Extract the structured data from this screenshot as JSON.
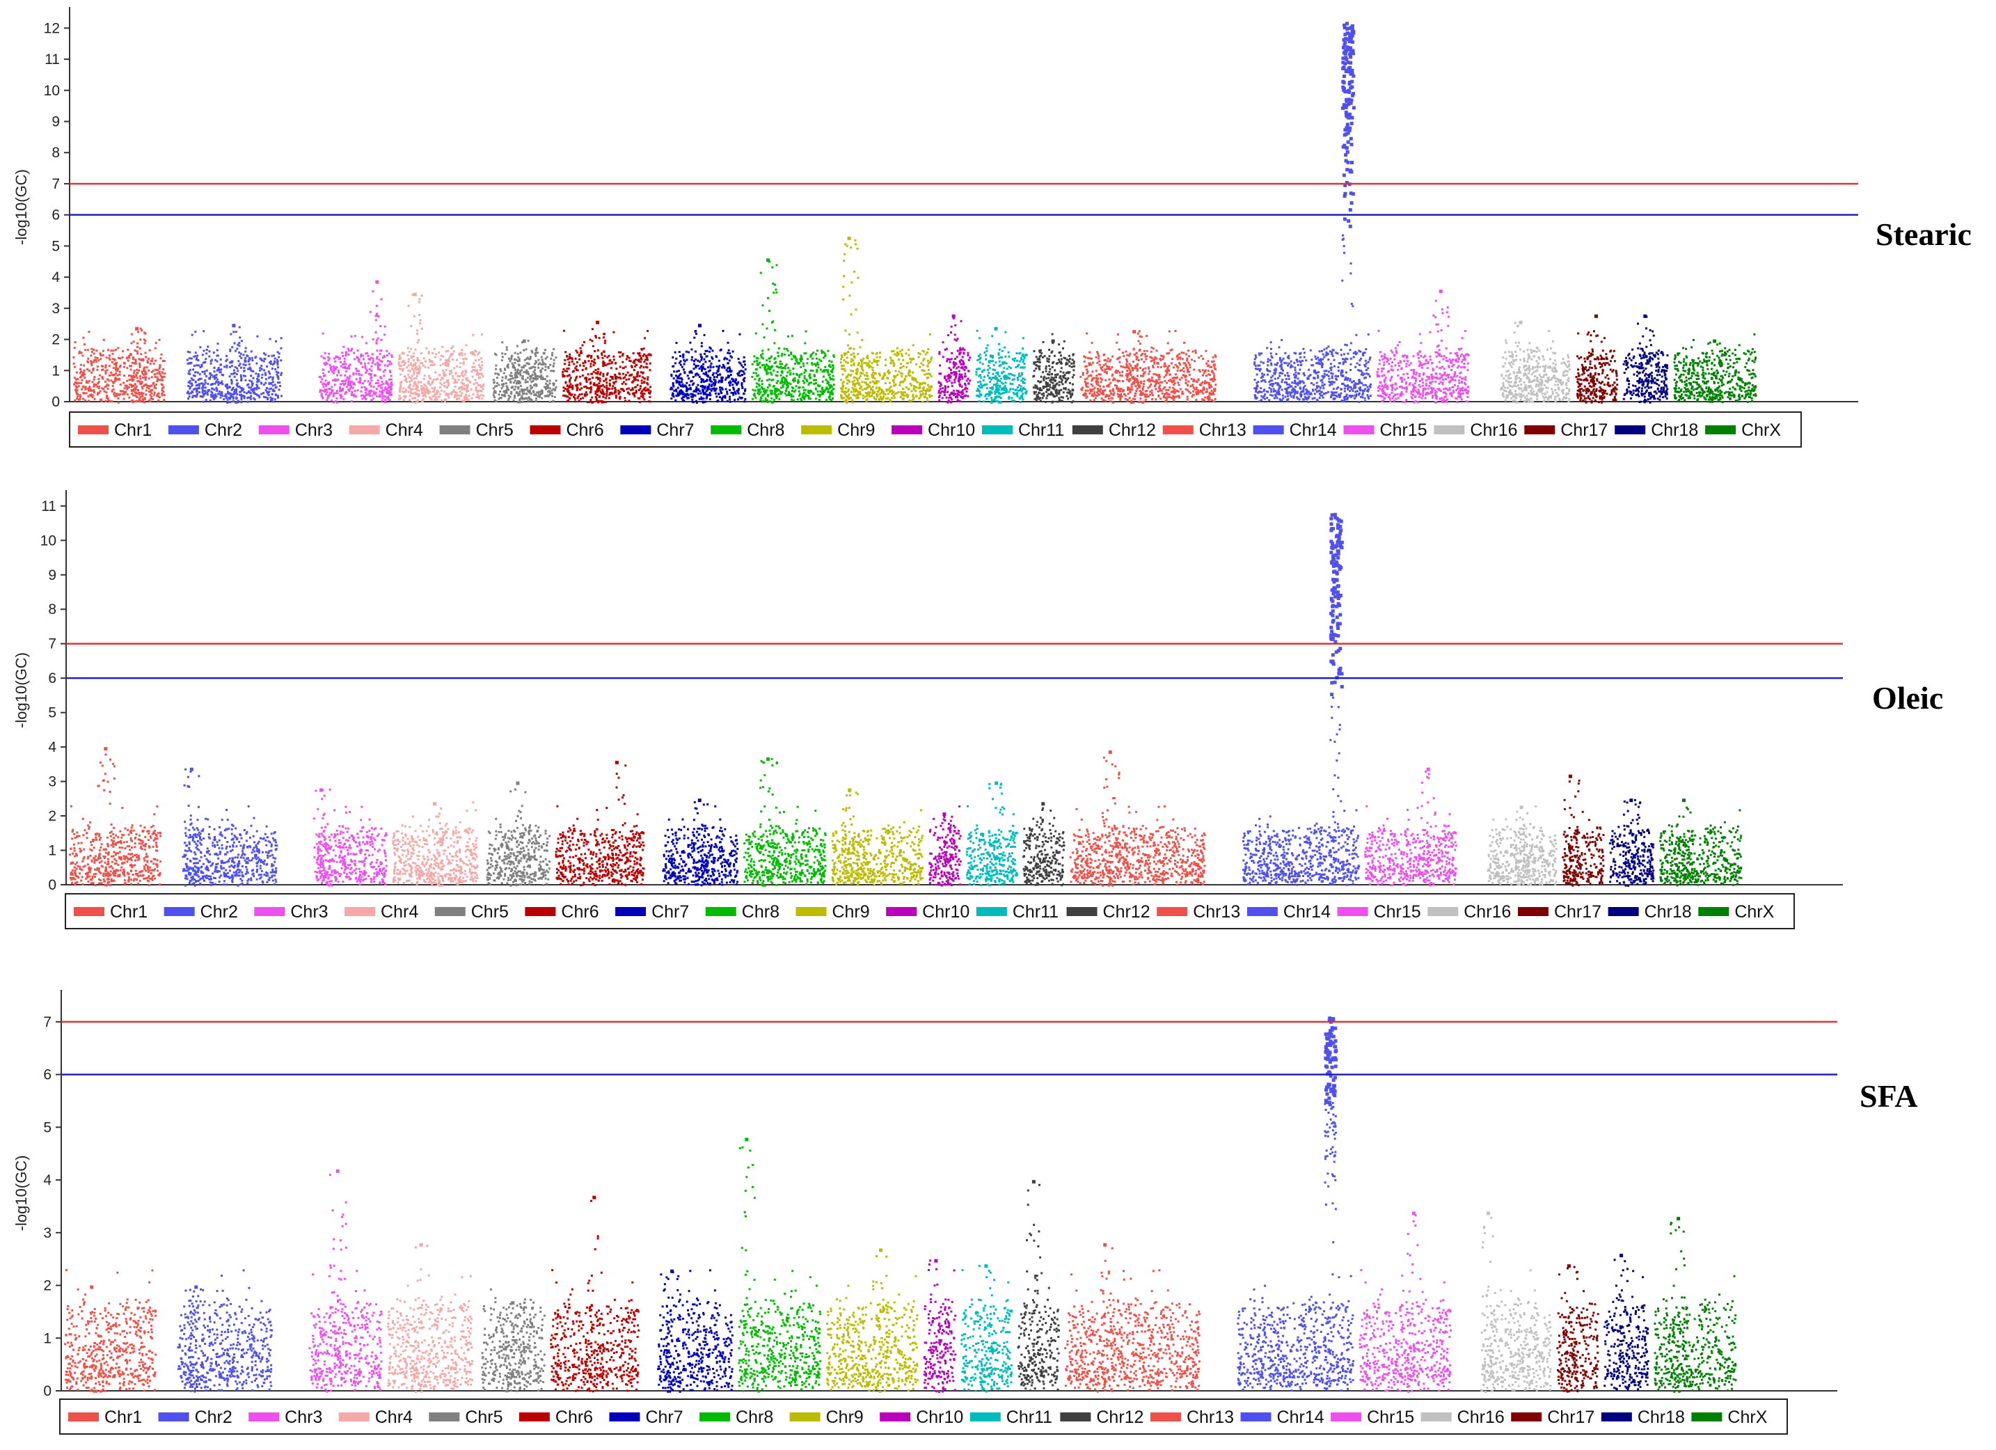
{
  "chart_data": [
    {
      "type": "scatter",
      "subtype": "manhattan",
      "title": "Stearic",
      "ylabel": "-log10(GC)",
      "ylim": [
        0,
        12.5
      ],
      "yticks": [
        0,
        1,
        2,
        3,
        4,
        5,
        6,
        7,
        8,
        9,
        10,
        11,
        12
      ],
      "thresholds": [
        {
          "value": 7,
          "color": "#e53030"
        },
        {
          "value": 6,
          "color": "#2020c0"
        }
      ],
      "peaks": [
        2.4,
        2.5,
        3.9,
        3.5,
        2.0,
        2.6,
        2.5,
        4.6,
        5.3,
        2.8,
        2.4,
        2.0,
        2.3,
        12.2,
        3.6,
        2.6,
        2.8,
        2.8,
        2.0
      ],
      "peak_positions": [
        0.7,
        0.5,
        0.8,
        0.2,
        0.5,
        0.4,
        0.4,
        0.2,
        0.1,
        0.5,
        0.4,
        0.5,
        0.4,
        0.8,
        0.7,
        0.3,
        0.5,
        0.5,
        0.5
      ]
    },
    {
      "type": "scatter",
      "subtype": "manhattan",
      "title": "Oleic",
      "ylabel": "-log10(GC)",
      "ylim": [
        0,
        11.3
      ],
      "yticks": [
        0,
        1,
        2,
        3,
        4,
        5,
        6,
        7,
        8,
        9,
        10,
        11
      ],
      "thresholds": [
        {
          "value": 7,
          "color": "#e53030"
        },
        {
          "value": 6,
          "color": "#2020c0"
        }
      ],
      "peaks": [
        4.0,
        3.4,
        2.8,
        2.4,
        3.0,
        3.6,
        2.5,
        3.7,
        2.8,
        2.1,
        3.0,
        2.4,
        3.9,
        10.8,
        3.4,
        2.3,
        3.2,
        2.5,
        2.5
      ],
      "peak_positions": [
        0.4,
        0.1,
        0.1,
        0.5,
        0.5,
        0.7,
        0.5,
        0.3,
        0.2,
        0.5,
        0.6,
        0.5,
        0.3,
        0.8,
        0.7,
        0.5,
        0.2,
        0.5,
        0.3
      ]
    },
    {
      "type": "scatter",
      "subtype": "manhattan",
      "title": "SFA",
      "ylabel": "-log10(GC)",
      "ylim": [
        0,
        7.5
      ],
      "yticks": [
        0,
        1,
        2,
        3,
        4,
        5,
        6,
        7
      ],
      "thresholds": [
        {
          "value": 7,
          "color": "#e53030"
        },
        {
          "value": 6,
          "color": "#2020c0"
        }
      ],
      "peaks": [
        2.0,
        2.0,
        4.2,
        2.8,
        1.7,
        3.7,
        2.3,
        4.8,
        2.7,
        2.5,
        2.4,
        4.0,
        2.8,
        7.1,
        3.4,
        3.4,
        2.4,
        2.6,
        3.3
      ],
      "peak_positions": [
        0.3,
        0.2,
        0.4,
        0.4,
        0.5,
        0.5,
        0.2,
        0.1,
        0.6,
        0.4,
        0.5,
        0.4,
        0.3,
        0.8,
        0.6,
        0.1,
        0.3,
        0.4,
        0.3
      ]
    }
  ],
  "legend": {
    "chromosomes": [
      "Chr1",
      "Chr2",
      "Chr3",
      "Chr4",
      "Chr5",
      "Chr6",
      "Chr7",
      "Chr8",
      "Chr9",
      "Chr10",
      "Chr11",
      "Chr12",
      "Chr13",
      "Chr14",
      "Chr15",
      "Chr16",
      "Chr17",
      "Chr18",
      "ChrX"
    ],
    "colors": [
      "#f0504a",
      "#5050ee",
      "#ee50ee",
      "#f4a8a8",
      "#808080",
      "#bb0000",
      "#0000bb",
      "#00bb00",
      "#bbbb00",
      "#bb00bb",
      "#00bbbb",
      "#404040",
      "#f0504a",
      "#5050ee",
      "#ee50ee",
      "#c0c0c0",
      "#800000",
      "#000080",
      "#008000"
    ],
    "widths": [
      2.9,
      3.0,
      2.3,
      2.7,
      2.0,
      2.8,
      2.4,
      2.6,
      2.9,
      1.0,
      1.6,
      1.3,
      4.3,
      3.7,
      2.9,
      2.2,
      1.3,
      1.4,
      2.6
    ],
    "gaps": [
      0.7,
      1.2,
      0.2,
      0.3,
      0.2,
      0.6,
      0.2,
      0.2,
      0.2,
      0.2,
      0.2,
      0.2,
      1.2,
      0.2,
      1.0,
      0.2,
      0.2,
      0.2,
      0.8
    ]
  }
}
